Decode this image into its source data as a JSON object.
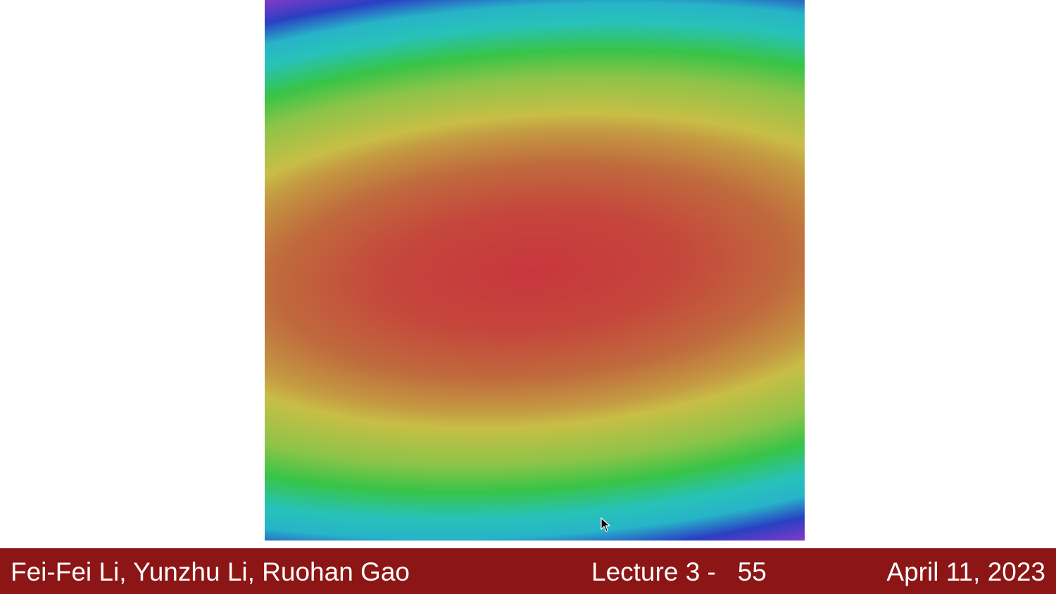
{
  "footer": {
    "authors": "Fei-Fei Li, Yunzhu Li, Ruohan Gao",
    "lecture": "Lecture 3 -   55",
    "date": "April 11, 2023"
  },
  "loss_landscape": {
    "colormap": [
      "#cc3a3e",
      "#c8bd46",
      "#37c448",
      "#27c2c2",
      "#2a3fc4",
      "#c93ac4"
    ]
  },
  "icons": {
    "cursor": "mouse-pointer-icon"
  }
}
